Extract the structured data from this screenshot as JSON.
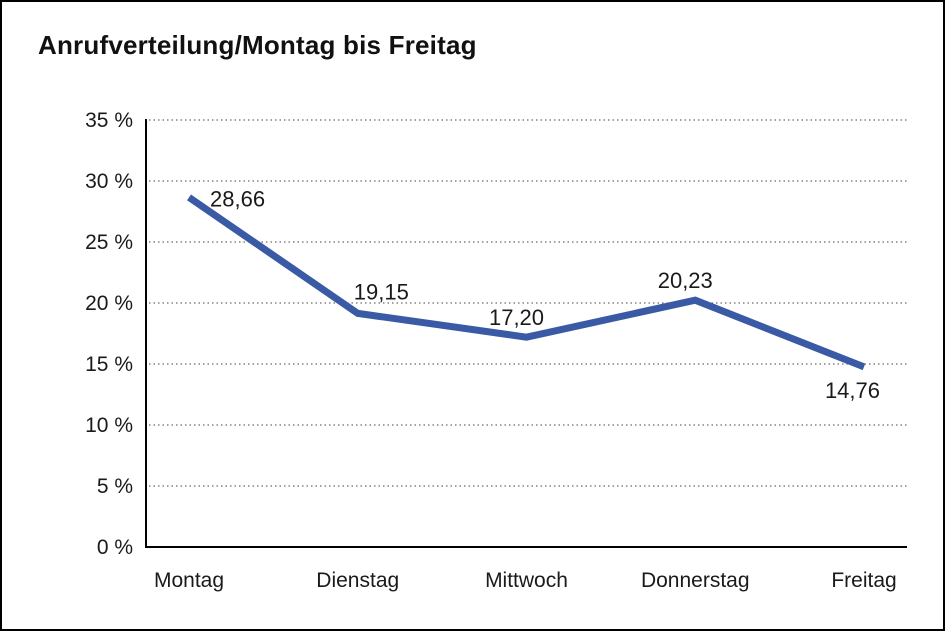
{
  "chart_data": {
    "type": "line",
    "title": "Anrufverteilung/Montag bis Freitag",
    "categories": [
      "Montag",
      "Dienstag",
      "Mittwoch",
      "Donnerstag",
      "Freitag"
    ],
    "values": [
      28.66,
      19.15,
      17.2,
      20.23,
      14.76
    ],
    "value_labels": [
      "28,66",
      "19,15",
      "17,20",
      "20,23",
      "14,76"
    ],
    "ytick_values": [
      0,
      5,
      10,
      15,
      20,
      25,
      30,
      35
    ],
    "ytick_labels": [
      "0 %",
      "5 %",
      "10 %",
      "15 %",
      "20 %",
      "25 %",
      "30 %",
      "35 %"
    ],
    "ylim": [
      0,
      35
    ],
    "xlabel": "",
    "ylabel": "",
    "grid": "horizontal-dotted",
    "legend": "none",
    "line_color": "#3a5aa5",
    "axis_color": "#000000",
    "gridline_color": "#444444",
    "text_color": "#1a1a1a"
  }
}
